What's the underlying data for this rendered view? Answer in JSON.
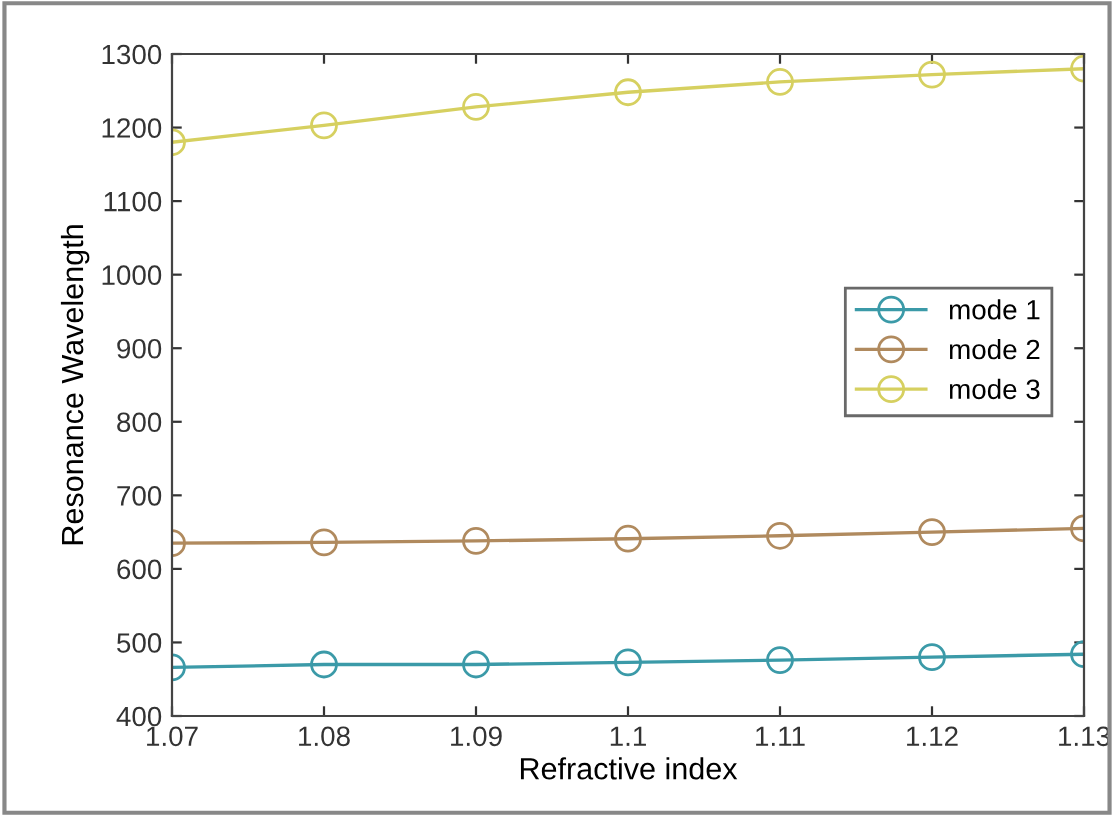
{
  "chart_data": {
    "type": "line",
    "xlabel": "Refractive index",
    "ylabel": "Resonance Wavelength",
    "x": [
      1.07,
      1.08,
      1.09,
      1.1,
      1.11,
      1.12,
      1.13
    ],
    "series": [
      {
        "name": "mode 1",
        "color": "#3b9aa8",
        "values": [
          466,
          470,
          470,
          473,
          476,
          480,
          484
        ]
      },
      {
        "name": "mode 2",
        "color": "#b08a5e",
        "values": [
          635,
          636,
          638,
          641,
          645,
          650,
          655
        ]
      },
      {
        "name": "mode 3",
        "color": "#d6d060",
        "values": [
          1180,
          1203,
          1228,
          1248,
          1262,
          1272,
          1280
        ]
      }
    ],
    "xlim": [
      1.07,
      1.13
    ],
    "xticks": [
      1.07,
      1.08,
      1.09,
      1.1,
      1.11,
      1.12,
      1.13
    ],
    "ylim": [
      400,
      1300
    ],
    "yticks": [
      400,
      500,
      600,
      700,
      800,
      900,
      1000,
      1100,
      1200,
      1300
    ],
    "marker": "circle",
    "line_style": "solid",
    "legend": "right",
    "grid": false
  }
}
